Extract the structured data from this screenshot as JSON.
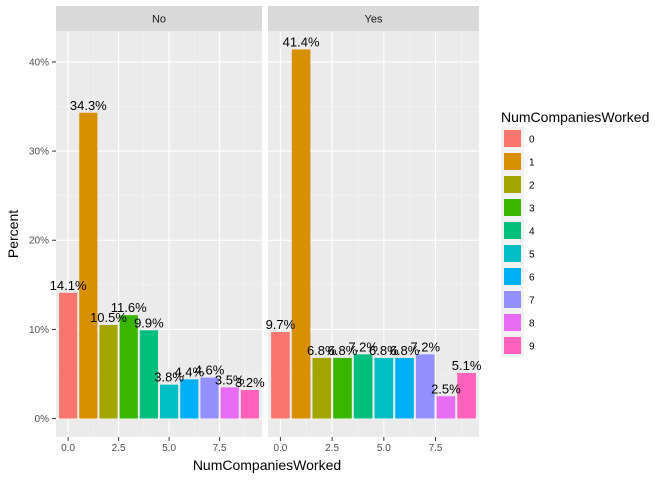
{
  "chart_data": {
    "type": "bar",
    "xlabel": "NumCompaniesWorked",
    "ylabel": "Percent",
    "xlim": [
      -0.6,
      9.6
    ],
    "ylim": [
      -2.07,
      43.47
    ],
    "x_ticks": [
      0,
      2.5,
      5,
      7.5
    ],
    "x_tick_labels": [
      "0.0",
      "2.5",
      "5.0",
      "7.5"
    ],
    "y_ticks": [
      0,
      10,
      20,
      30,
      40
    ],
    "y_tick_labels": [
      "0%",
      "10%",
      "20%",
      "30%",
      "40%"
    ],
    "grid": true,
    "legend": {
      "title": "NumCompaniesWorked",
      "position": "right",
      "items": [
        "0",
        "1",
        "2",
        "3",
        "4",
        "5",
        "6",
        "7",
        "8",
        "9"
      ],
      "colors": [
        "#F8766D",
        "#D89000",
        "#A3A500",
        "#39B600",
        "#00BF7D",
        "#00BFC4",
        "#00B0F6",
        "#9590FF",
        "#E76BF3",
        "#FF62BC"
      ]
    },
    "facets": [
      {
        "name": "No",
        "x": [
          0,
          1,
          2,
          3,
          4,
          5,
          6,
          7,
          8,
          9
        ],
        "values": [
          14.1,
          34.3,
          10.5,
          11.6,
          9.9,
          3.8,
          4.4,
          4.6,
          3.5,
          3.2
        ],
        "labels": [
          "14.1%",
          "34.3%",
          "10.5%",
          "11.6%",
          "9.9%",
          "3.8%",
          "4.4%",
          "4.6%",
          "3.5%",
          "3.2%"
        ]
      },
      {
        "name": "Yes",
        "x": [
          0,
          1,
          2,
          3,
          4,
          5,
          6,
          7,
          8,
          9
        ],
        "values": [
          9.7,
          41.4,
          6.8,
          6.8,
          7.2,
          6.8,
          6.8,
          7.2,
          2.5,
          5.1
        ],
        "labels": [
          "9.7%",
          "41.4%",
          "6.8%",
          "6.8%",
          "7.2%",
          "6.8%",
          "6.8%",
          "7.2%",
          "2.5%",
          "5.1%"
        ]
      }
    ]
  }
}
